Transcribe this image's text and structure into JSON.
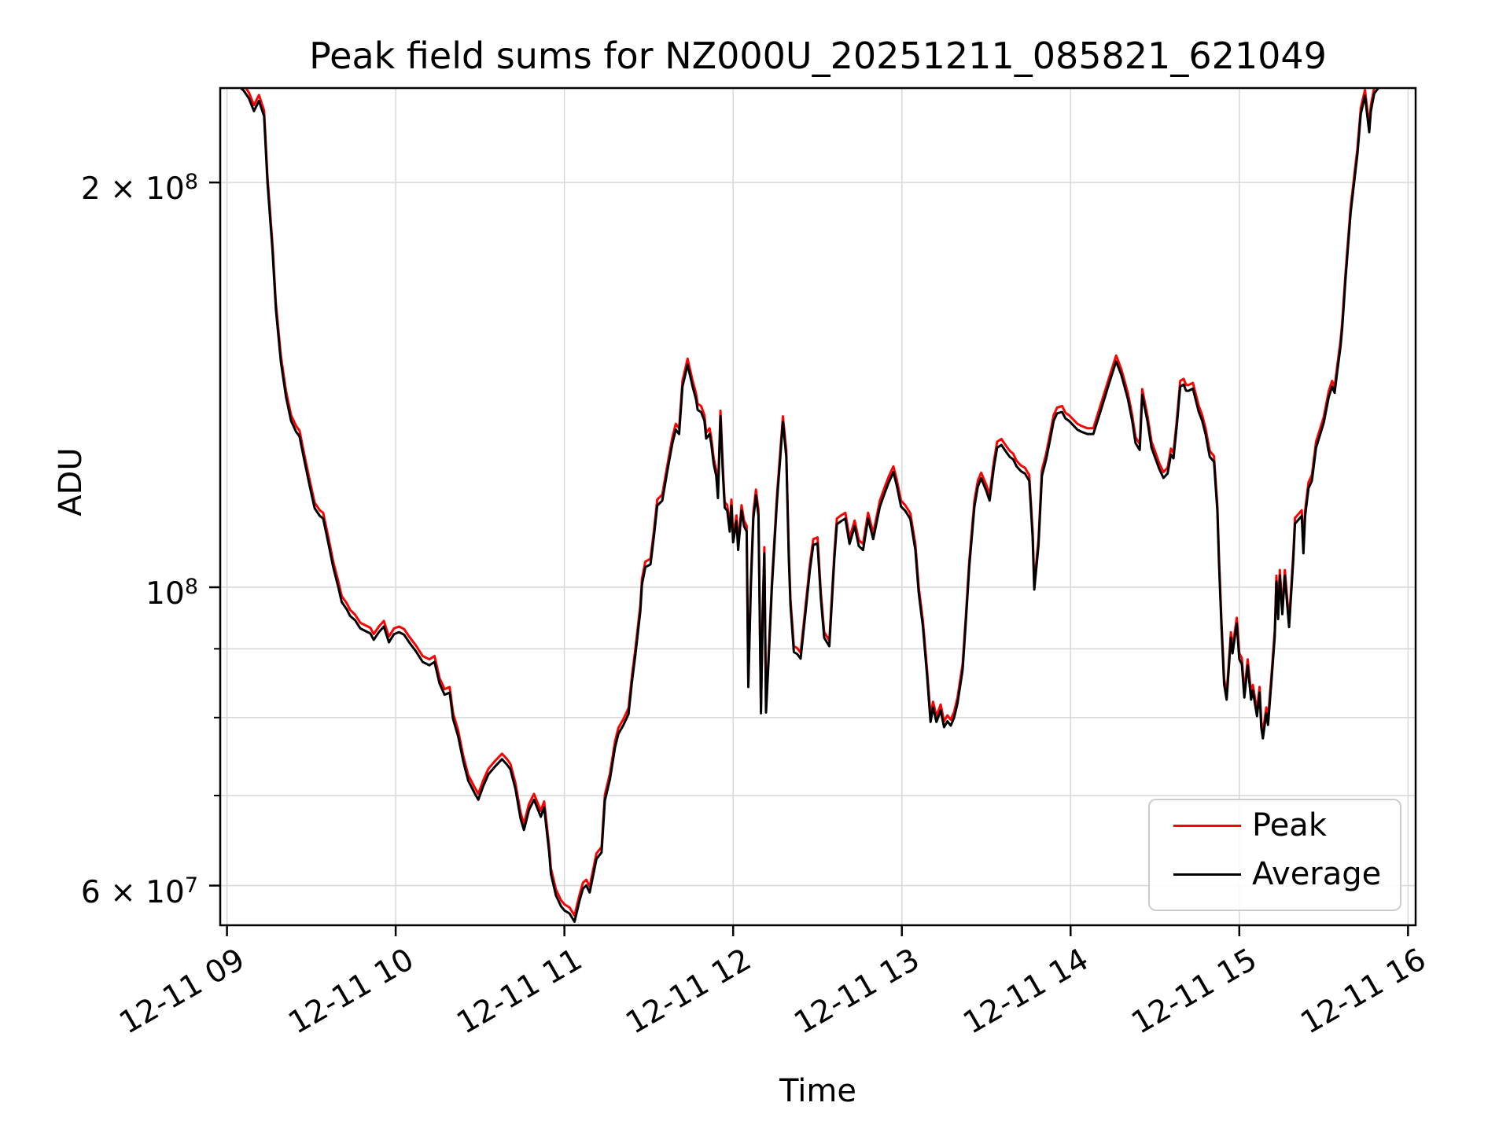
{
  "figure": {
    "title": "Peak field sums for NZ000U_20251211_085821_621049",
    "xlabel": "Time",
    "ylabel": "ADU",
    "background": "#ffffff",
    "grid_color": "#d9d9d9",
    "spine_color": "#000000"
  },
  "legend": {
    "entries": [
      {
        "label": "Peak",
        "color": "#ff0000"
      },
      {
        "label": "Average",
        "color": "#000000"
      }
    ]
  },
  "chart_data": {
    "type": "line",
    "title": "Peak field sums for NZ000U_20251211_085821_621049",
    "xlabel": "Time",
    "ylabel": "ADU",
    "yscale": "log",
    "grid": true,
    "x_unit": "hours on 2025-12-11",
    "xlim": [
      8.96,
      16.045
    ],
    "ylim": [
      56060000.0,
      235100000.0
    ],
    "x_ticks": [
      9,
      10,
      11,
      12,
      13,
      14,
      15,
      16
    ],
    "x_tick_labels": [
      "12-11 09",
      "12-11 10",
      "12-11 11",
      "12-11 12",
      "12-11 13",
      "12-11 14",
      "12-11 15",
      "12-11 16"
    ],
    "y_ticks": [
      {
        "value": 200000000.0,
        "text": "2 × 10",
        "exp": "8"
      },
      {
        "value": 100000000.0,
        "text": "10",
        "exp": "8"
      },
      {
        "value": 60000000.0,
        "text": "6 × 10",
        "exp": "7"
      }
    ],
    "y_minor_ticks": [
      90000000.0,
      80000000.0,
      70000000.0
    ],
    "x": [
      8.96,
      9.07,
      9.1,
      9.13,
      9.16,
      9.19,
      9.22,
      9.24,
      9.27,
      9.29,
      9.32,
      9.35,
      9.38,
      9.41,
      9.43,
      9.46,
      9.49,
      9.52,
      9.55,
      9.57,
      9.6,
      9.63,
      9.66,
      9.68,
      9.71,
      9.73,
      9.76,
      9.79,
      9.82,
      9.85,
      9.87,
      9.9,
      9.93,
      9.96,
      9.99,
      10.02,
      10.05,
      10.08,
      10.12,
      10.16,
      10.2,
      10.23,
      10.26,
      10.29,
      10.32,
      10.34,
      10.37,
      10.4,
      10.43,
      10.47,
      10.49,
      10.52,
      10.55,
      10.59,
      10.63,
      10.66,
      10.68,
      10.71,
      10.74,
      10.76,
      10.79,
      10.82,
      10.85,
      10.86,
      10.88,
      10.89,
      10.91,
      10.92,
      10.95,
      10.98,
      11.0,
      11.03,
      11.06,
      11.09,
      11.11,
      11.13,
      11.15,
      11.19,
      11.22,
      11.24,
      11.27,
      11.3,
      11.32,
      11.35,
      11.38,
      11.4,
      11.42,
      11.45,
      11.46,
      11.48,
      11.51,
      11.53,
      11.55,
      11.58,
      11.61,
      11.64,
      11.66,
      11.68,
      11.7,
      11.73,
      11.76,
      11.78,
      11.79,
      11.81,
      11.83,
      11.84,
      11.86,
      11.87,
      11.885,
      11.9,
      11.91,
      11.925,
      11.94,
      11.95,
      11.965,
      11.98,
      11.99,
      12.0,
      12.02,
      12.03,
      12.05,
      12.065,
      12.08,
      12.09,
      12.105,
      12.12,
      12.135,
      12.15,
      12.165,
      12.175,
      12.185,
      12.195,
      12.21,
      12.23,
      12.26,
      12.295,
      12.315,
      12.33,
      12.34,
      12.36,
      12.38,
      12.4,
      12.43,
      12.455,
      12.475,
      12.5,
      12.52,
      12.54,
      12.57,
      12.6,
      12.615,
      12.64,
      12.665,
      12.69,
      12.72,
      12.745,
      12.77,
      12.8,
      12.83,
      12.87,
      12.895,
      12.92,
      12.95,
      12.97,
      12.995,
      13.02,
      13.05,
      13.08,
      13.1,
      13.125,
      13.15,
      13.17,
      13.185,
      13.205,
      13.23,
      13.25,
      13.27,
      13.29,
      13.31,
      13.33,
      13.36,
      13.38,
      13.4,
      13.43,
      13.45,
      13.47,
      13.5,
      13.52,
      13.545,
      13.565,
      13.59,
      13.62,
      13.64,
      13.66,
      13.68,
      13.705,
      13.73,
      13.755,
      13.775,
      13.785,
      13.81,
      13.83,
      13.855,
      13.88,
      13.9,
      13.92,
      13.95,
      13.97,
      13.99,
      14.015,
      14.04,
      14.065,
      14.1,
      14.135,
      14.18,
      14.23,
      14.27,
      14.3,
      14.32,
      14.34,
      14.365,
      14.385,
      14.41,
      14.425,
      14.455,
      14.48,
      14.5,
      14.525,
      14.55,
      14.575,
      14.595,
      14.61,
      14.63,
      14.65,
      14.67,
      14.685,
      14.7,
      14.725,
      14.76,
      14.78,
      14.8,
      14.825,
      14.85,
      14.87,
      14.88,
      14.895,
      14.91,
      14.925,
      14.95,
      14.96,
      14.985,
      15.0,
      15.015,
      15.03,
      15.05,
      15.07,
      15.08,
      15.105,
      15.12,
      15.13,
      15.14,
      15.16,
      15.17,
      15.19,
      15.21,
      15.22,
      15.23,
      15.24,
      15.255,
      15.27,
      15.295,
      15.32,
      15.33,
      15.37,
      15.38,
      15.39,
      15.41,
      15.43,
      15.455,
      15.5,
      15.53,
      15.55,
      15.565,
      15.58,
      15.6,
      15.61,
      15.63,
      15.66,
      15.7,
      15.72,
      15.745,
      15.77,
      15.78,
      15.8,
      15.835,
      15.93,
      16.02
    ],
    "series": [
      {
        "name": "Peak",
        "color": "#ff0000",
        "y": [
          238400000.0,
          238400000.0,
          236300000.0,
          233300000.0,
          228300000.0,
          232300000.0,
          226200000.0,
          202000000.0,
          179800000.0,
          162600000.0,
          148500000.0,
          139900000.0,
          134300000.0,
          131800000.0,
          130800000.0,
          125200000.0,
          120200000.0,
          115600000.0,
          114100000.0,
          113600000.0,
          109100000.0,
          104500000.0,
          101000000.0,
          98500000.0,
          97300000.0,
          96200000.0,
          95400000.0,
          94100000.0,
          93700000.0,
          93300000.0,
          92300000.0,
          93500000.0,
          94400000.0,
          91900000.0,
          93200000.0,
          93500000.0,
          93100000.0,
          91900000.0,
          90500000.0,
          88900000.0,
          88400000.0,
          88900000.0,
          85600000.0,
          84000000.0,
          84300000.0,
          80600000.0,
          78300000.0,
          75000000.0,
          72500000.0,
          70900000.0,
          70200000.0,
          71900000.0,
          73300000.0,
          74300000.0,
          75200000.0,
          74500000.0,
          73900000.0,
          71500000.0,
          68000000.0,
          66700000.0,
          69000000.0,
          70200000.0,
          68700000.0,
          68200000.0,
          69300000.0,
          67500000.0,
          64100000.0,
          61800000.0,
          59600000.0,
          58500000.0,
          58100000.0,
          57800000.0,
          57000000.0,
          59100000.0,
          60300000.0,
          60600000.0,
          59900000.0,
          63400000.0,
          64100000.0,
          70100000.0,
          72700000.0,
          76800000.0,
          78600000.0,
          79800000.0,
          81300000.0,
          85900000.0,
          89900000.0,
          97000000.0,
          101500000.0,
          104500000.0,
          105000000.0,
          110100000.0,
          116200000.0,
          117200000.0,
          123200000.0,
          129300000.0,
          132300000.0,
          131300000.0,
          142400000.0,
          147900000.0,
          142400000.0,
          139400000.0,
          136900000.0,
          136400000.0,
          134300000.0,
          130300000.0,
          131300000.0,
          129300000.0,
          124700000.0,
          122200000.0,
          117700000.0,
          135300000.0,
          122200000.0,
          115700000.0,
          115100000.0,
          111100000.0,
          116200000.0,
          109100000.0,
          113100000.0,
          107700000.0,
          115100000.0,
          112100000.0,
          111100000.0,
          85100000.0,
          101000000.0,
          113600000.0,
          118200000.0,
          114100000.0,
          81400000.0,
          96000000.0,
          107100000.0,
          81500000.0,
          88900000.0,
          101000000.0,
          117200000.0,
          134000000.0,
          126300000.0,
          106100000.0,
          98000000.0,
          90400000.0,
          90100000.0,
          89400000.0,
          97000000.0,
          104000000.0,
          108600000.0,
          108900000.0,
          99000000.0,
          92600000.0,
          91300000.0,
          106100000.0,
          112500000.0,
          113100000.0,
          113600000.0,
          108800000.0,
          112100000.0,
          108400000.0,
          107700000.0,
          113600000.0,
          109700000.0,
          116000000.0,
          118400000.0,
          120700000.0,
          123000000.0,
          120200000.0,
          116000000.0,
          115100000.0,
          113500000.0,
          107700000.0,
          100000000.0,
          94400000.0,
          86700000.0,
          80200000.0,
          82200000.0,
          80200000.0,
          81800000.0,
          79500000.0,
          80300000.0,
          79700000.0,
          80800000.0,
          82800000.0,
          87700000.0,
          95600000.0,
          104700000.0,
          116000000.0,
          120000000.0,
          121700000.0,
          119200000.0,
          117200000.0,
          124000000.0,
          128300000.0,
          128900000.0,
          127300000.0,
          126300000.0,
          125700000.0,
          124200000.0,
          123200000.0,
          122700000.0,
          121200000.0,
          110100000.0,
          100600000.0,
          108600000.0,
          122200000.0,
          125700000.0,
          130300000.0,
          134300000.0,
          136000000.0,
          136400000.0,
          134800000.0,
          134300000.0,
          133300000.0,
          132300000.0,
          131800000.0,
          131300000.0,
          131300000.0,
          136900000.0,
          143400000.0,
          148700000.0,
          145400000.0,
          142400000.0,
          139400000.0,
          134300000.0,
          129300000.0,
          127800000.0,
          140400000.0,
          134300000.0,
          128300000.0,
          126300000.0,
          123700000.0,
          121800000.0,
          122700000.0,
          126800000.0,
          125900000.0,
          133300000.0,
          142400000.0,
          142900000.0,
          141400000.0,
          141400000.0,
          141900000.0,
          136400000.0,
          134300000.0,
          131300000.0,
          126300000.0,
          125200000.0,
          115100000.0,
          104700000.0,
          93900000.0,
          85500000.0,
          83300000.0,
          92600000.0,
          90200000.0,
          94900000.0,
          89300000.0,
          88600000.0,
          83600000.0,
          88400000.0,
          83300000.0,
          84600000.0,
          81000000.0,
          84300000.0,
          79500000.0,
          78000000.0,
          81400000.0,
          79800000.0,
          85900000.0,
          92900000.0,
          102000000.0,
          95600000.0,
          103000000.0,
          96500000.0,
          103000000.0,
          94300000.0,
          106100000.0,
          112600000.0,
          114100000.0,
          107100000.0,
          114100000.0,
          119700000.0,
          121200000.0,
          128300000.0,
          133800000.0,
          139900000.0,
          142400000.0,
          140900000.0,
          145900000.0,
          152500000.0,
          157600000.0,
          171700000.0,
          191900000.0,
          212100000.0,
          227300000.0,
          234300000.0,
          220200000.0,
          228300000.0,
          235300000.0,
          238400000.0,
          238400000.0,
          238400000.0
        ]
      },
      {
        "name": "Average",
        "color": "#000000",
        "y": [
          236000000.0,
          236000000.0,
          234000000.0,
          231000000.0,
          226000000.0,
          230000000.0,
          224000000.0,
          200000000.0,
          178000000.0,
          161000000.0,
          147000000.0,
          138500000.0,
          133000000.0,
          130500000.0,
          129500000.0,
          124000000.0,
          119000000.0,
          114500000.0,
          113000000.0,
          112500000.0,
          108000000.0,
          103500000.0,
          100000000.0,
          97500000.0,
          96300000.0,
          95200000.0,
          94500000.0,
          93200000.0,
          92800000.0,
          92400000.0,
          91400000.0,
          92600000.0,
          93500000.0,
          91000000.0,
          92300000.0,
          92600000.0,
          92200000.0,
          91000000.0,
          89600000.0,
          88000000.0,
          87500000.0,
          88000000.0,
          84800000.0,
          83200000.0,
          83500000.0,
          79800000.0,
          77500000.0,
          74300000.0,
          71800000.0,
          70200000.0,
          69500000.0,
          71200000.0,
          72600000.0,
          73600000.0,
          74500000.0,
          73800000.0,
          73200000.0,
          70800000.0,
          67300000.0,
          66000000.0,
          68300000.0,
          69500000.0,
          68000000.0,
          67500000.0,
          68600000.0,
          66800000.0,
          63500000.0,
          61200000.0,
          59000000.0,
          57900000.0,
          57500000.0,
          57200000.0,
          56400000.0,
          58500000.0,
          59700000.0,
          60000000.0,
          59300000.0,
          62800000.0,
          63500000.0,
          69400000.0,
          72000000.0,
          76000000.0,
          77800000.0,
          79000000.0,
          80500000.0,
          85000000.0,
          89000000.0,
          96000000.0,
          100500000.0,
          103500000.0,
          104000000.0,
          109000000.0,
          115000000.0,
          116000000.0,
          122000000.0,
          128000000.0,
          131000000.0,
          130000000.0,
          141000000.0,
          146400000.0,
          141000000.0,
          138000000.0,
          135500000.0,
          135000000.0,
          133000000.0,
          129000000.0,
          130000000.0,
          128000000.0,
          123500000.0,
          121000000.0,
          116500000.0,
          134000000.0,
          121000000.0,
          114600000.0,
          114000000.0,
          110000000.0,
          115000000.0,
          108000000.0,
          112000000.0,
          106600000.0,
          114000000.0,
          111000000.0,
          110000000.0,
          84300000.0,
          100000000.0,
          112500000.0,
          117000000.0,
          113000000.0,
          80600000.0,
          95000000.0,
          106000000.0,
          80700000.0,
          88000000.0,
          100000000.0,
          116000000.0,
          132700000.0,
          125000000.0,
          105000000.0,
          97000000.0,
          89500000.0,
          89200000.0,
          88500000.0,
          96000000.0,
          103000000.0,
          107500000.0,
          107800000.0,
          98000000.0,
          91700000.0,
          90400000.0,
          105000000.0,
          111400000.0,
          112000000.0,
          112500000.0,
          107700000.0,
          111000000.0,
          107300000.0,
          106600000.0,
          112500000.0,
          108600000.0,
          114800000.0,
          117200000.0,
          119500000.0,
          121800000.0,
          119000000.0,
          114800000.0,
          114000000.0,
          112400000.0,
          106600000.0,
          99000000.0,
          93500000.0,
          85800000.0,
          79400000.0,
          81400000.0,
          79400000.0,
          81000000.0,
          78700000.0,
          79500000.0,
          78900000.0,
          80000000.0,
          82000000.0,
          86800000.0,
          94700000.0,
          103700000.0,
          114800000.0,
          118800000.0,
          120500000.0,
          118000000.0,
          116000000.0,
          122800000.0,
          127000000.0,
          127600000.0,
          126000000.0,
          125000000.0,
          124500000.0,
          123000000.0,
          122000000.0,
          121500000.0,
          120000000.0,
          109000000.0,
          99600000.0,
          107500000.0,
          121000000.0,
          124500000.0,
          129000000.0,
          133000000.0,
          134700000.0,
          135000000.0,
          133500000.0,
          133000000.0,
          132000000.0,
          131000000.0,
          130500000.0,
          130000000.0,
          130000000.0,
          135500000.0,
          142000000.0,
          147200000.0,
          144000000.0,
          141000000.0,
          138000000.0,
          133000000.0,
          128000000.0,
          126500000.0,
          139000000.0,
          133000000.0,
          127000000.0,
          125000000.0,
          122500000.0,
          120600000.0,
          121500000.0,
          125500000.0,
          124700000.0,
          132000000.0,
          141000000.0,
          141500000.0,
          140000000.0,
          140000000.0,
          140500000.0,
          135000000.0,
          133000000.0,
          130000000.0,
          125000000.0,
          124000000.0,
          114000000.0,
          103700000.0,
          93000000.0,
          84700000.0,
          82500000.0,
          91700000.0,
          89300000.0,
          94000000.0,
          88400000.0,
          87700000.0,
          82800000.0,
          87500000.0,
          82500000.0,
          83800000.0,
          80200000.0,
          83500000.0,
          78700000.0,
          77200000.0,
          80600000.0,
          79000000.0,
          85000000.0,
          92000000.0,
          101000000.0,
          94700000.0,
          102000000.0,
          95500000.0,
          102000000.0,
          93400000.0,
          105000000.0,
          111500000.0,
          113000000.0,
          106000000.0,
          113000000.0,
          118500000.0,
          120000000.0,
          127000000.0,
          132500000.0,
          138500000.0,
          141000000.0,
          139500000.0,
          144500000.0,
          151000000.0,
          156000000.0,
          170000000.0,
          190000000.0,
          210000000.0,
          225000000.0,
          232000000.0,
          218000000.0,
          226000000.0,
          233000000.0,
          236000000.0,
          236000000.0,
          236000000.0
        ]
      }
    ]
  }
}
